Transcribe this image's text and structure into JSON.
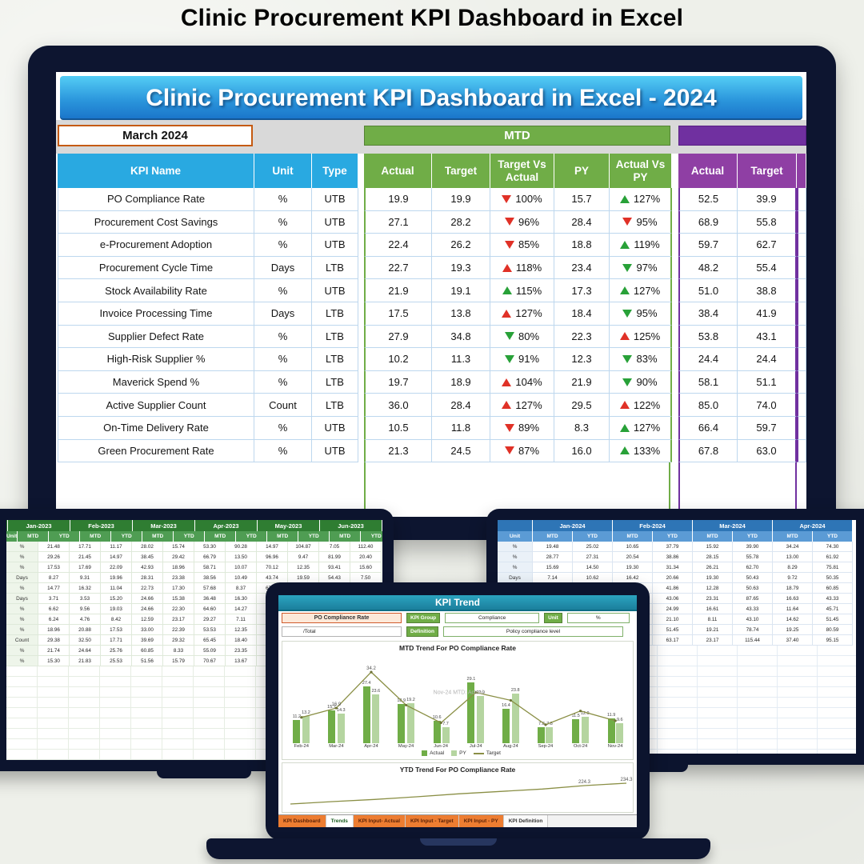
{
  "page": {
    "title": "Clinic Procurement KPI Dashboard in Excel"
  },
  "dashboard": {
    "banner": "Clinic Procurement KPI Dashboard in Excel - 2024",
    "month_label": "March 2024",
    "mtd_label": "MTD",
    "ytd_label": "",
    "headers": {
      "kpi": "KPI Name",
      "unit": "Unit",
      "type": "Type",
      "actual": "Actual",
      "target": "Target",
      "tva": "Target Vs Actual",
      "py": "PY",
      "avp": "Actual Vs PY",
      "y_actual": "Actual",
      "y_target": "Target"
    },
    "rows": [
      {
        "kpi": "PO Compliance Rate",
        "unit": "%",
        "type": "UTB",
        "actual": "19.9",
        "target": "19.9",
        "tva_arrow": "down-red",
        "tva": "100%",
        "py": "15.7",
        "avp_arrow": "up-green",
        "avp": "127%",
        "y_actual": "52.5",
        "y_target": "39.9"
      },
      {
        "kpi": "Procurement Cost Savings",
        "unit": "%",
        "type": "UTB",
        "actual": "27.1",
        "target": "28.2",
        "tva_arrow": "down-red",
        "tva": "96%",
        "py": "28.4",
        "avp_arrow": "down-red",
        "avp": "95%",
        "y_actual": "68.9",
        "y_target": "55.8"
      },
      {
        "kpi": "e-Procurement Adoption",
        "unit": "%",
        "type": "UTB",
        "actual": "22.4",
        "target": "26.2",
        "tva_arrow": "down-red",
        "tva": "85%",
        "py": "18.8",
        "avp_arrow": "up-green",
        "avp": "119%",
        "y_actual": "59.7",
        "y_target": "62.7"
      },
      {
        "kpi": "Procurement Cycle Time",
        "unit": "Days",
        "type": "LTB",
        "actual": "22.7",
        "target": "19.3",
        "tva_arrow": "up-red",
        "tva": "118%",
        "py": "23.4",
        "avp_arrow": "down-green",
        "avp": "97%",
        "y_actual": "48.2",
        "y_target": "55.4"
      },
      {
        "kpi": "Stock Availability Rate",
        "unit": "%",
        "type": "UTB",
        "actual": "21.9",
        "target": "19.1",
        "tva_arrow": "up-green",
        "tva": "115%",
        "py": "17.3",
        "avp_arrow": "up-green",
        "avp": "127%",
        "y_actual": "51.0",
        "y_target": "38.8"
      },
      {
        "kpi": "Invoice Processing Time",
        "unit": "Days",
        "type": "LTB",
        "actual": "17.5",
        "target": "13.8",
        "tva_arrow": "up-red",
        "tva": "127%",
        "py": "18.4",
        "avp_arrow": "down-green",
        "avp": "95%",
        "y_actual": "38.4",
        "y_target": "41.9"
      },
      {
        "kpi": "Supplier Defect Rate",
        "unit": "%",
        "type": "LTB",
        "actual": "27.9",
        "target": "34.8",
        "tva_arrow": "down-green",
        "tva": "80%",
        "py": "22.3",
        "avp_arrow": "up-red",
        "avp": "125%",
        "y_actual": "53.8",
        "y_target": "43.1"
      },
      {
        "kpi": "High-Risk Supplier %",
        "unit": "%",
        "type": "LTB",
        "actual": "10.2",
        "target": "11.3",
        "tva_arrow": "down-green",
        "tva": "91%",
        "py": "12.3",
        "avp_arrow": "down-green",
        "avp": "83%",
        "y_actual": "24.4",
        "y_target": "24.4"
      },
      {
        "kpi": "Maverick Spend %",
        "unit": "%",
        "type": "LTB",
        "actual": "19.7",
        "target": "18.9",
        "tva_arrow": "up-red",
        "tva": "104%",
        "py": "21.9",
        "avp_arrow": "down-green",
        "avp": "90%",
        "y_actual": "58.1",
        "y_target": "51.1"
      },
      {
        "kpi": "Active Supplier Count",
        "unit": "Count",
        "type": "LTB",
        "actual": "36.0",
        "target": "28.4",
        "tva_arrow": "up-red",
        "tva": "127%",
        "py": "29.5",
        "avp_arrow": "up-red",
        "avp": "122%",
        "y_actual": "85.0",
        "y_target": "74.0"
      },
      {
        "kpi": "On-Time Delivery Rate",
        "unit": "%",
        "type": "UTB",
        "actual": "10.5",
        "target": "11.8",
        "tva_arrow": "down-red",
        "tva": "89%",
        "py": "8.3",
        "avp_arrow": "up-green",
        "avp": "127%",
        "y_actual": "66.4",
        "y_target": "59.7"
      },
      {
        "kpi": "Green Procurement Rate",
        "unit": "%",
        "type": "UTB",
        "actual": "21.3",
        "target": "24.5",
        "tva_arrow": "down-red",
        "tva": "87%",
        "py": "16.0",
        "avp_arrow": "up-green",
        "avp": "133%",
        "y_actual": "67.8",
        "y_target": "63.0"
      }
    ]
  },
  "sheet_2023": {
    "unit_header": "Unit",
    "months": [
      "Jan-2023",
      "Feb-2023",
      "Mar-2023",
      "Apr-2023",
      "May-2023",
      "Jun-2023"
    ],
    "sub": [
      "MTD",
      "YTD",
      "MTD",
      "YTD",
      "MTD",
      "YTD",
      "MTD",
      "YTD",
      "MTD",
      "YTD",
      "MTD",
      "YTD"
    ],
    "rows": [
      {
        "unit": "%",
        "cells": [
          "21.48",
          "17.71",
          "11.17",
          "28.02",
          "15.74",
          "53.30",
          "90.28",
          "14.97",
          "104.87",
          "7.05",
          "112.40"
        ]
      },
      {
        "unit": "%",
        "cells": [
          "29.26",
          "21.45",
          "14.97",
          "38.45",
          "29.42",
          "66.79",
          "13.50",
          "96.96",
          "9.47",
          "81.99",
          "20.40"
        ]
      },
      {
        "unit": "%",
        "cells": [
          "17.53",
          "17.69",
          "22.09",
          "42.93",
          "18.96",
          "58.71",
          "10.07",
          "70.12",
          "12.35",
          "93.41",
          "15.60"
        ]
      },
      {
        "unit": "Days",
        "cells": [
          "8.27",
          "9.31",
          "19.96",
          "28.31",
          "23.38",
          "38.56",
          "10.49",
          "43.74",
          "19.59",
          "54.43",
          "7.50"
        ]
      },
      {
        "unit": "%",
        "cells": [
          "14.77",
          "16.32",
          "11.04",
          "22.73",
          "17.30",
          "57.68",
          "8.37",
          "67.72",
          "22.33",
          "86.20",
          "26.10"
        ]
      },
      {
        "unit": "Days",
        "cells": [
          "3.71",
          "3.53",
          "15.20",
          "24.66",
          "15.38",
          "36.48",
          "16.30",
          "40.18",
          "12.35",
          "53.62",
          "9.10"
        ]
      },
      {
        "unit": "%",
        "cells": [
          "6.62",
          "9.56",
          "19.03",
          "24.66",
          "22.30",
          "64.60",
          "14.27",
          "70.70",
          "17.32",
          "84.51",
          "11.30"
        ]
      },
      {
        "unit": "%",
        "cells": [
          "6.24",
          "4.76",
          "8.42",
          "12.59",
          "23.17",
          "29.27",
          "7.11",
          "39.22",
          "11.57",
          "48.91",
          "13.20"
        ]
      },
      {
        "unit": "%",
        "cells": [
          "18.96",
          "20.88",
          "17.53",
          "33.00",
          "22.39",
          "53.53",
          "12.35",
          "64.88",
          "14.79",
          "77.94",
          "18.40"
        ]
      },
      {
        "unit": "Count",
        "cells": [
          "29.38",
          "32.50",
          "17.71",
          "39.69",
          "29.32",
          "65.45",
          "18.40",
          "82.50",
          "23.19",
          "99.71",
          "25.30"
        ]
      },
      {
        "unit": "%",
        "cells": [
          "21.74",
          "24.64",
          "25.76",
          "60.85",
          "8.33",
          "55.09",
          "23.35",
          "77.87",
          "22.38",
          "99.64",
          "16.70"
        ]
      },
      {
        "unit": "%",
        "cells": [
          "15.30",
          "21.83",
          "25.53",
          "51.56",
          "15.79",
          "70.67",
          "13.67",
          "80.82",
          "21.56",
          "98.34",
          "12.90"
        ]
      }
    ]
  },
  "sheet_2024": {
    "unit_header": "Unit",
    "months": [
      "Jan-2024",
      "Feb-2024",
      "Mar-2024",
      "Apr-2024"
    ],
    "sub": [
      "MTD",
      "YTD",
      "MTD",
      "YTD",
      "MTD",
      "YTD",
      "MTD",
      "YTD"
    ],
    "rows": [
      {
        "unit": "%",
        "cells": [
          "19.48",
          "25.02",
          "10.65",
          "37.79",
          "15.92",
          "39.90",
          "34.24",
          "74.30"
        ]
      },
      {
        "unit": "%",
        "cells": [
          "28.77",
          "27.31",
          "20.54",
          "38.86",
          "28.15",
          "55.78",
          "13.00",
          "61.92"
        ]
      },
      {
        "unit": "%",
        "cells": [
          "15.69",
          "14.50",
          "19.30",
          "31.34",
          "26.21",
          "62.70",
          "8.29",
          "75.81"
        ]
      },
      {
        "unit": "Days",
        "cells": [
          "7.14",
          "10.62",
          "16.42",
          "20.66",
          "19.30",
          "50.43",
          "9.72",
          "50.35"
        ]
      },
      {
        "unit": "%",
        "cells": [
          "16.34",
          "17.14",
          "13.83",
          "41.86",
          "12.28",
          "50.63",
          "18.79",
          "60.85"
        ]
      },
      {
        "unit": "Days",
        "cells": [
          "20.29",
          "20.25",
          "34.84",
          "43.06",
          "23.31",
          "87.65",
          "16.63",
          "43.33"
        ]
      },
      {
        "unit": "%",
        "cells": [
          "6.65",
          "11.74",
          "11.26",
          "24.99",
          "16.61",
          "43.33",
          "11.64",
          "45.71"
        ]
      },
      {
        "unit": "%",
        "cells": [
          "11.64",
          "13.31",
          "16.11",
          "21.10",
          "8.11",
          "43.10",
          "14.62",
          "51.45"
        ]
      },
      {
        "unit": "%",
        "cells": [
          "23.23",
          "28.03",
          "34.84",
          "51.45",
          "19.21",
          "78.74",
          "19.25",
          "80.59"
        ]
      },
      {
        "unit": "Count",
        "cells": [
          "24.52",
          "49.70",
          "24.32",
          "63.17",
          "23.17",
          "115.44",
          "37.40",
          "95.15"
        ]
      }
    ]
  },
  "trend": {
    "sheet_title": "KPI Trend",
    "kpi_name": "PO Compliance Rate",
    "kpi_group_label": "KPI Group",
    "kpi_group": "Compliance",
    "unit_label": "Unit",
    "unit": "%",
    "formula": "/Total",
    "definition_label": "Definition",
    "definition": "Policy compliance level",
    "watermark": "Nov-24 MTD: Actual",
    "legend": [
      "Actual",
      "PY",
      "Target"
    ],
    "tabs": [
      {
        "label": "KPI Dashboard",
        "style": "orange"
      },
      {
        "label": "Trends",
        "style": "active"
      },
      {
        "label": "KPI Input- Actual",
        "style": "orange"
      },
      {
        "label": "KPI Input - Target",
        "style": "orange"
      },
      {
        "label": "KPI Input - PY",
        "style": "orange"
      },
      {
        "label": "KPI Definition",
        "style": "plain"
      }
    ]
  },
  "chart_data": [
    {
      "type": "bar",
      "title": "MTD Trend For PO Compliance Rate",
      "categories": [
        "Feb-24",
        "Mar-24",
        "Apr-24",
        "May-24",
        "Jun-24",
        "Jul-24",
        "Aug-24",
        "Sep-24",
        "Oct-24",
        "Nov-24"
      ],
      "series": [
        {
          "name": "Actual",
          "values": [
            11.2,
            15.7,
            27.4,
            18.9,
            10.6,
            29.1,
            16.4,
            7.8,
            11.5,
            11.9
          ]
        },
        {
          "name": "PY",
          "values": [
            13.2,
            14.3,
            23.6,
            19.2,
            7.7,
            22.9,
            23.8,
            7.8,
            12.9,
            9.6
          ]
        },
        {
          "name": "Target",
          "type": "line",
          "values": [
            12.4,
            16.9,
            34.2,
            18.3,
            9.8,
            24.4,
            20.6,
            8.9,
            15.5,
            10.8
          ]
        }
      ],
      "annotations": [
        {
          "index": 1,
          "text": "16.9"
        },
        {
          "index": 2,
          "text": "34.2"
        }
      ],
      "ylim": [
        0,
        36
      ],
      "legend_position": "bottom",
      "grid": false
    },
    {
      "type": "line",
      "title": "YTD Trend For PO Compliance Rate",
      "values": [
        148,
        158,
        167,
        178,
        190,
        200,
        210,
        224.3,
        234.3
      ],
      "point_labels": [
        {
          "index": 7,
          "text": "224.3"
        },
        {
          "index": 8,
          "text": "234.3"
        }
      ]
    }
  ]
}
